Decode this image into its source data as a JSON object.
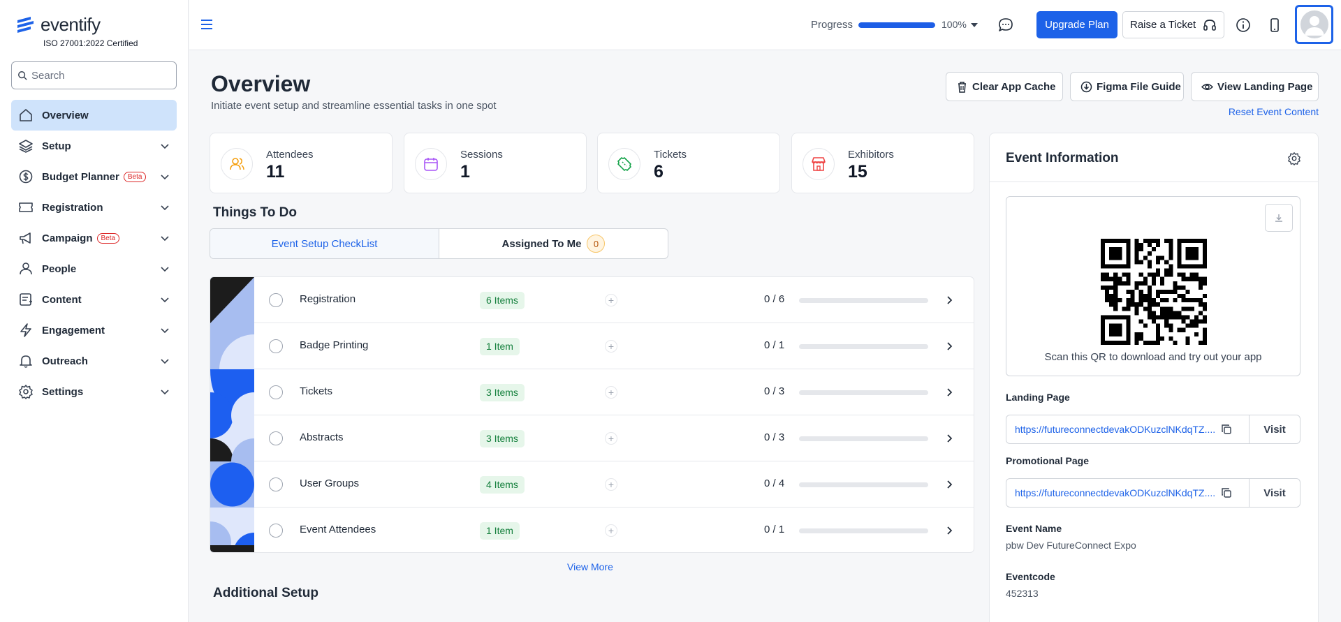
{
  "brand": {
    "name": "eventify",
    "cert": "ISO 27001:2022 Certified"
  },
  "search": {
    "placeholder": "Search"
  },
  "sidebar": {
    "items": [
      {
        "label": "Overview",
        "icon": "home-icon",
        "active": true
      },
      {
        "label": "Setup",
        "icon": "layers-icon"
      },
      {
        "label": "Budget Planner",
        "icon": "dollar-icon",
        "badge": "Beta"
      },
      {
        "label": "Registration",
        "icon": "ticket-icon"
      },
      {
        "label": "Campaign",
        "icon": "megaphone-icon",
        "badge": "Beta"
      },
      {
        "label": "People",
        "icon": "people-icon"
      },
      {
        "label": "Content",
        "icon": "content-icon"
      },
      {
        "label": "Engagement",
        "icon": "lightning-icon"
      },
      {
        "label": "Outreach",
        "icon": "bell-icon"
      },
      {
        "label": "Settings",
        "icon": "gear-icon"
      }
    ]
  },
  "topbar": {
    "progress_label": "Progress",
    "progress_value": 100,
    "progress_pct": "100%",
    "upgrade_label": "Upgrade Plan",
    "ticket_label": "Raise a Ticket"
  },
  "header": {
    "title": "Overview",
    "subtitle": "Initiate event setup and streamline essential tasks in one spot",
    "clear_cache": "Clear App Cache",
    "figma_guide": "Figma File Guide",
    "view_landing": "View Landing Page",
    "reset_link": "Reset Event Content"
  },
  "stats": [
    {
      "label": "Attendees",
      "value": "11",
      "color": "#f59e0b"
    },
    {
      "label": "Sessions",
      "value": "1",
      "color": "#a855f7"
    },
    {
      "label": "Tickets",
      "value": "6",
      "color": "#16a34a"
    },
    {
      "label": "Exhibitors",
      "value": "15",
      "color": "#ef4444"
    }
  ],
  "todo": {
    "title": "Things To Do",
    "tab_checklist": "Event Setup CheckList",
    "tab_assigned": "Assigned To Me",
    "assigned_count": "0",
    "rows": [
      {
        "name": "Registration",
        "badge": "6 Items",
        "count": "0 / 6",
        "progress": 0
      },
      {
        "name": "Badge Printing",
        "badge": "1 Item",
        "count": "0 / 1",
        "progress": 0
      },
      {
        "name": "Tickets",
        "badge": "3 Items",
        "count": "0 / 3",
        "progress": 0
      },
      {
        "name": "Abstracts",
        "badge": "3 Items",
        "count": "0 / 3",
        "progress": 0
      },
      {
        "name": "User Groups",
        "badge": "4 Items",
        "count": "0 / 4",
        "progress": 0
      },
      {
        "name": "Event Attendees",
        "badge": "1 Item",
        "count": "0 / 1",
        "progress": 0
      }
    ],
    "view_more": "View More"
  },
  "additional": {
    "title": "Additional Setup"
  },
  "event_info": {
    "title": "Event Information",
    "qr_caption": "Scan this QR to download and try out your app",
    "landing_label": "Landing Page",
    "landing_url": "https://futureconnectdevakODKuzclNKdqTZ....",
    "promo_label": "Promotional Page",
    "promo_url": "https://futureconnectdevakODKuzclNKdqTZ....",
    "visit_label": "Visit",
    "name_label": "Event Name",
    "name_value": "pbw Dev FutureConnect Expo",
    "code_label": "Eventcode",
    "code_value": "452313"
  },
  "colors": {
    "accent": "#1d62e8",
    "active_nav": "#cfe3fb"
  }
}
